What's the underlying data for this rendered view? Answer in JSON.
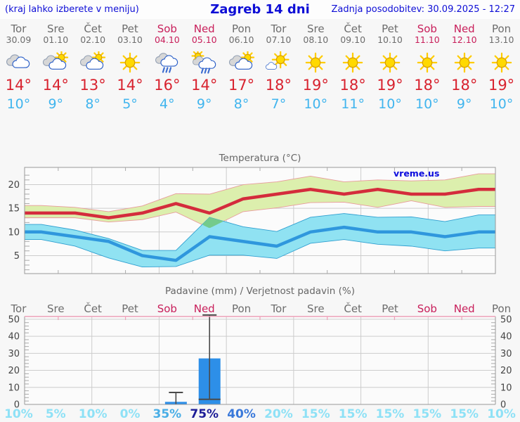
{
  "header": {
    "hint": "(kraj lahko izberete v meniju)",
    "title": "Zagreb 14 dni",
    "updated": "Zadnja posodobitev: 30.09.2025 - 12:27"
  },
  "colors": {
    "header_blue": "#0e0ed6",
    "weekday_gray": "#6d6d6d",
    "weekend_red": "#c81e5a",
    "tmax_red": "#d8232f",
    "tmin_blue": "#41b5ee",
    "chart_title_gray": "#666666",
    "axis_gray": "#9a9a9a",
    "grid_gray": "#cccccc",
    "tick_gray": "#aaaaaa",
    "label_dark": "#444444",
    "plot_bg": "#fbfbfb",
    "max_line": "#d42c3c",
    "max_band": "#dcefad",
    "max_band_edge": "#e89b9b",
    "min_line": "#2f97dd",
    "min_band": "#90e2f2",
    "min_band_edge": "#2f9fd0",
    "overlap_green": "#74cb8c",
    "bar_blue": "#2d8fe8",
    "whisker_gray": "#4a4a4a",
    "precip_top_pink": "#eda0b8",
    "watermark_blue": "#0b0bdd",
    "sun_fill": "#ffd900",
    "sun_edge": "#d89f00",
    "ray_yellow": "#ffcc00",
    "cloud_gray_fill": "#d7d7d7",
    "cloud_gray_edge": "#93a0b4",
    "cloud_white_fill": "#ffffff",
    "cloud_white_edge": "#2b5fc7",
    "rain_blue": "#3a6bd0"
  },
  "forecast": {
    "degree_symbol": "°",
    "days": [
      {
        "name": "Tor",
        "date": "30.09",
        "weekend": false,
        "icon": "cloudy",
        "tmax": 14,
        "tmin": 10
      },
      {
        "name": "Sre",
        "date": "01.10",
        "weekend": false,
        "icon": "sun-cloud",
        "tmax": 14,
        "tmin": 9
      },
      {
        "name": "Čet",
        "date": "02.10",
        "weekend": false,
        "icon": "sun-cloud",
        "tmax": 13,
        "tmin": 8
      },
      {
        "name": "Pet",
        "date": "03.10",
        "weekend": false,
        "icon": "sunny",
        "tmax": 14,
        "tmin": 5
      },
      {
        "name": "Sob",
        "date": "04.10",
        "weekend": true,
        "icon": "rain",
        "tmax": 16,
        "tmin": 4
      },
      {
        "name": "Ned",
        "date": "05.10",
        "weekend": true,
        "icon": "sun-rain",
        "tmax": 14,
        "tmin": 9
      },
      {
        "name": "Pon",
        "date": "06.10",
        "weekend": false,
        "icon": "cloud-sun",
        "tmax": 17,
        "tmin": 8
      },
      {
        "name": "Tor",
        "date": "07.10",
        "weekend": false,
        "icon": "sun-small-cloud",
        "tmax": 18,
        "tmin": 7
      },
      {
        "name": "Sre",
        "date": "08.10",
        "weekend": false,
        "icon": "sunny",
        "tmax": 19,
        "tmin": 10
      },
      {
        "name": "Čet",
        "date": "09.10",
        "weekend": false,
        "icon": "sunny",
        "tmax": 18,
        "tmin": 11
      },
      {
        "name": "Pet",
        "date": "10.10",
        "weekend": false,
        "icon": "sunny",
        "tmax": 19,
        "tmin": 10
      },
      {
        "name": "Sob",
        "date": "11.10",
        "weekend": true,
        "icon": "sunny",
        "tmax": 18,
        "tmin": 10
      },
      {
        "name": "Ned",
        "date": "12.10",
        "weekend": true,
        "icon": "sunny",
        "tmax": 18,
        "tmin": 9
      },
      {
        "name": "Pon",
        "date": "13.10",
        "weekend": false,
        "icon": "sunny",
        "tmax": 19,
        "tmin": 10
      }
    ]
  },
  "chart_data": [
    {
      "type": "line",
      "title": "Temperatura (°C)",
      "watermark": "vreme.us",
      "n_days": 14,
      "yticks": [
        5,
        10,
        15,
        20
      ],
      "ylim": [
        1.2,
        23.65
      ],
      "grid": true,
      "series": [
        {
          "name": "t_max",
          "values": [
            14,
            14,
            13,
            14,
            16,
            14,
            17,
            18,
            19,
            18,
            19,
            18,
            18,
            19
          ]
        },
        {
          "name": "t_max_range_upper",
          "values": [
            15.6,
            15.2,
            14.3,
            15.5,
            18.1,
            18.0,
            20.0,
            20.6,
            21.8,
            20.6,
            21.0,
            20.8,
            21.0,
            22.3
          ]
        },
        {
          "name": "t_max_range_lower",
          "values": [
            13.0,
            13.0,
            12.1,
            12.6,
            14.2,
            10.8,
            14.3,
            15.1,
            16.2,
            16.3,
            15.2,
            16.6,
            15.2,
            15.4
          ]
        },
        {
          "name": "t_min",
          "values": [
            10,
            9,
            8,
            5,
            4,
            9,
            8,
            7,
            10,
            11,
            10,
            10,
            9,
            10
          ]
        },
        {
          "name": "t_min_range_upper",
          "values": [
            11.6,
            10.4,
            8.6,
            6.1,
            6.1,
            13.1,
            11.1,
            10.1,
            13.1,
            13.9,
            13.1,
            13.2,
            12.2,
            13.6
          ]
        },
        {
          "name": "t_min_range_lower",
          "values": [
            8.4,
            7.0,
            4.5,
            2.6,
            2.7,
            5.1,
            5.1,
            4.4,
            7.6,
            8.4,
            7.4,
            7.0,
            6.0,
            6.6
          ]
        }
      ]
    },
    {
      "type": "bar",
      "title": "Padavine (mm) / Verjetnost padavin (%)",
      "categories": [
        "Tor",
        "Sre",
        "Čet",
        "Pet",
        "Sob",
        "Ned",
        "Pon",
        "Tor",
        "Sre",
        "Čet",
        "Pet",
        "Sob",
        "Ned",
        "Pon"
      ],
      "weekend_days": [
        4,
        5,
        11,
        12
      ],
      "precip_mm": [
        0,
        0,
        0,
        0,
        1.5,
        27,
        0,
        0,
        0,
        0,
        0,
        0,
        0,
        0
      ],
      "whisker_high_mm": [
        0,
        0,
        0,
        0,
        7,
        52.5,
        0,
        0,
        0,
        0,
        0,
        0,
        0,
        0
      ],
      "whisker_low_mm": [
        0,
        0,
        0,
        0,
        0,
        3,
        0,
        0,
        0,
        0,
        0,
        0,
        0,
        0
      ],
      "probability_pct": [
        10,
        5,
        10,
        0,
        35,
        75,
        40,
        20,
        15,
        15,
        15,
        15,
        15,
        10
      ],
      "probability_colors": [
        "#8ee1f6",
        "#8ee1f6",
        "#8ee1f6",
        "#8ee1f6",
        "#49aee6",
        "#1d1d97",
        "#3a79da",
        "#8ee1f6",
        "#8ee1f6",
        "#8ee1f6",
        "#8ee1f6",
        "#8ee1f6",
        "#8ee1f6",
        "#8ee1f6"
      ],
      "pct_suffix": "%",
      "yticks": [
        0,
        10,
        20,
        30,
        40,
        50
      ],
      "ylim": [
        0,
        51.6
      ],
      "grid": true
    }
  ]
}
